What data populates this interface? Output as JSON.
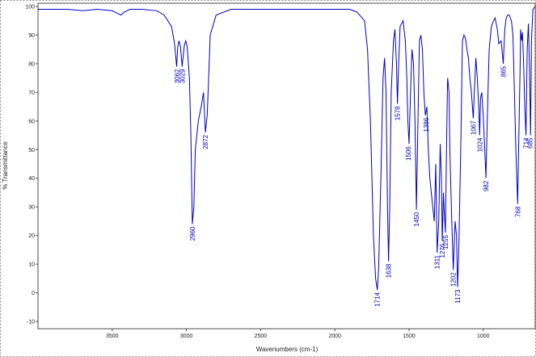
{
  "chart_data": {
    "type": "line",
    "title": "",
    "xlabel": "Wavenumbers (cm-1)",
    "ylabel": "% Transmittance",
    "x_reversed": true,
    "xlim": [
      4000,
      650
    ],
    "ylim": [
      -10,
      100
    ],
    "grid": false,
    "line_color": "#0000c0",
    "xticks": [
      3500,
      3000,
      2500,
      2000,
      1500,
      1000
    ],
    "yticks": [
      -10,
      0,
      10,
      20,
      30,
      40,
      50,
      60,
      70,
      80,
      90,
      100
    ],
    "series": [
      {
        "points": [
          [
            4000,
            99
          ],
          [
            3900,
            99
          ],
          [
            3800,
            99
          ],
          [
            3700,
            98.5
          ],
          [
            3600,
            99
          ],
          [
            3500,
            98.5
          ],
          [
            3460,
            97.5
          ],
          [
            3440,
            97
          ],
          [
            3420,
            98
          ],
          [
            3380,
            99
          ],
          [
            3300,
            99
          ],
          [
            3200,
            98.5
          ],
          [
            3150,
            97
          ],
          [
            3100,
            93
          ],
          [
            3080,
            87
          ],
          [
            3066,
            79
          ],
          [
            3058,
            86
          ],
          [
            3050,
            88
          ],
          [
            3040,
            86
          ],
          [
            3029,
            79
          ],
          [
            3015,
            86
          ],
          [
            3005,
            88
          ],
          [
            2995,
            86
          ],
          [
            2980,
            75
          ],
          [
            2970,
            55
          ],
          [
            2960,
            24
          ],
          [
            2950,
            30
          ],
          [
            2940,
            50
          ],
          [
            2920,
            60
          ],
          [
            2900,
            65
          ],
          [
            2885,
            70
          ],
          [
            2872,
            56
          ],
          [
            2860,
            62
          ],
          [
            2850,
            75
          ],
          [
            2840,
            90
          ],
          [
            2800,
            97
          ],
          [
            2700,
            99
          ],
          [
            2500,
            99
          ],
          [
            2300,
            99
          ],
          [
            2100,
            99
          ],
          [
            1900,
            99
          ],
          [
            1850,
            98
          ],
          [
            1800,
            95
          ],
          [
            1780,
            85
          ],
          [
            1760,
            60
          ],
          [
            1740,
            20
          ],
          [
            1725,
            5
          ],
          [
            1714,
            1
          ],
          [
            1705,
            8
          ],
          [
            1690,
            40
          ],
          [
            1675,
            75
          ],
          [
            1665,
            82
          ],
          [
            1655,
            70
          ],
          [
            1645,
            30
          ],
          [
            1638,
            11
          ],
          [
            1630,
            30
          ],
          [
            1620,
            70
          ],
          [
            1605,
            88
          ],
          [
            1595,
            92
          ],
          [
            1585,
            80
          ],
          [
            1578,
            66
          ],
          [
            1570,
            80
          ],
          [
            1560,
            93
          ],
          [
            1540,
            95
          ],
          [
            1525,
            88
          ],
          [
            1515,
            75
          ],
          [
            1508,
            60
          ],
          [
            1500,
            52
          ],
          [
            1490,
            70
          ],
          [
            1480,
            85
          ],
          [
            1470,
            80
          ],
          [
            1460,
            60
          ],
          [
            1450,
            29
          ],
          [
            1440,
            60
          ],
          [
            1430,
            88
          ],
          [
            1420,
            90
          ],
          [
            1410,
            85
          ],
          [
            1400,
            70
          ],
          [
            1390,
            62
          ],
          [
            1380,
            65
          ],
          [
            1370,
            50
          ],
          [
            1360,
            40
          ],
          [
            1340,
            30
          ],
          [
            1330,
            25
          ],
          [
            1320,
            45
          ],
          [
            1311,
            14
          ],
          [
            1300,
            25
          ],
          [
            1290,
            52
          ],
          [
            1282,
            40
          ],
          [
            1276,
            18
          ],
          [
            1268,
            35
          ],
          [
            1262,
            28
          ],
          [
            1255,
            21
          ],
          [
            1245,
            60
          ],
          [
            1240,
            75
          ],
          [
            1230,
            70
          ],
          [
            1225,
            50
          ],
          [
            1215,
            30
          ],
          [
            1202,
            8
          ],
          [
            1190,
            25
          ],
          [
            1180,
            20
          ],
          [
            1173,
            2
          ],
          [
            1165,
            15
          ],
          [
            1150,
            55
          ],
          [
            1140,
            88
          ],
          [
            1130,
            90
          ],
          [
            1120,
            89
          ],
          [
            1110,
            85
          ],
          [
            1100,
            82
          ],
          [
            1090,
            75
          ],
          [
            1080,
            70
          ],
          [
            1067,
            61
          ],
          [
            1060,
            70
          ],
          [
            1050,
            82
          ],
          [
            1040,
            75
          ],
          [
            1030,
            65
          ],
          [
            1024,
            55
          ],
          [
            1018,
            68
          ],
          [
            1010,
            70
          ],
          [
            1000,
            62
          ],
          [
            990,
            50
          ],
          [
            982,
            40
          ],
          [
            975,
            55
          ],
          [
            968,
            70
          ],
          [
            960,
            85
          ],
          [
            945,
            93
          ],
          [
            930,
            95
          ],
          [
            920,
            96
          ],
          [
            905,
            92
          ],
          [
            895,
            87
          ],
          [
            880,
            88
          ],
          [
            870,
            83
          ],
          [
            865,
            80
          ],
          [
            855,
            92
          ],
          [
            845,
            96
          ],
          [
            835,
            97
          ],
          [
            825,
            97
          ],
          [
            810,
            95
          ],
          [
            800,
            90
          ],
          [
            790,
            70
          ],
          [
            780,
            50
          ],
          [
            768,
            31
          ],
          [
            760,
            55
          ],
          [
            752,
            78
          ],
          [
            748,
            92
          ],
          [
            742,
            88
          ],
          [
            736,
            91
          ],
          [
            728,
            80
          ],
          [
            720,
            65
          ],
          [
            712,
            55
          ],
          [
            704,
            85
          ],
          [
            696,
            94
          ],
          [
            688,
            78
          ],
          [
            681,
            55
          ],
          [
            675,
            88
          ],
          [
            665,
            99
          ],
          [
            650,
            100
          ]
        ]
      }
    ],
    "peak_labels": [
      {
        "x": 3062,
        "y": 79,
        "label": "3062"
      },
      {
        "x": 3029,
        "y": 79,
        "label": "3029"
      },
      {
        "x": 2960,
        "y": 24,
        "label": "2960"
      },
      {
        "x": 2872,
        "y": 56,
        "label": "2872"
      },
      {
        "x": 1714,
        "y": 1,
        "label": "1714"
      },
      {
        "x": 1638,
        "y": 11,
        "label": "1638"
      },
      {
        "x": 1578,
        "y": 66,
        "label": "1578"
      },
      {
        "x": 1506,
        "y": 52,
        "label": "1506"
      },
      {
        "x": 1450,
        "y": 29,
        "label": "1450"
      },
      {
        "x": 1386,
        "y": 62,
        "label": "1386"
      },
      {
        "x": 1311,
        "y": 14,
        "label": "1311"
      },
      {
        "x": 1276,
        "y": 18,
        "label": "1276"
      },
      {
        "x": 1255,
        "y": 21,
        "label": "1255"
      },
      {
        "x": 1202,
        "y": 8,
        "label": "1202"
      },
      {
        "x": 1173,
        "y": 2,
        "label": "1173"
      },
      {
        "x": 1067,
        "y": 61,
        "label": "1067"
      },
      {
        "x": 1024,
        "y": 55,
        "label": "1024"
      },
      {
        "x": 982,
        "y": 40,
        "label": "982"
      },
      {
        "x": 865,
        "y": 80,
        "label": "865"
      },
      {
        "x": 768,
        "y": 31,
        "label": "768"
      },
      {
        "x": 714,
        "y": 55,
        "label": "714"
      },
      {
        "x": 685,
        "y": 55,
        "label": "685"
      }
    ]
  }
}
